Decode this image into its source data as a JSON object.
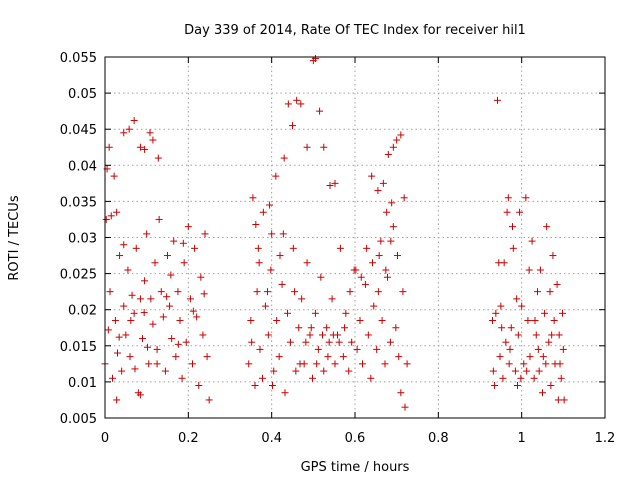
{
  "chart_data": {
    "type": "scatter",
    "title": "Day 339 of 2014, Rate Of TEC Index for receiver hil1",
    "xlabel": "GPS time / hours",
    "ylabel": "ROTI / TECUs",
    "xlim": [
      0,
      1.2
    ],
    "ylim": [
      0.005,
      0.055
    ],
    "xticks": [
      0,
      0.2,
      0.4,
      0.6,
      0.8,
      1.0,
      1.2
    ],
    "xtick_labels": [
      "0",
      "0.2",
      "0.4",
      "0.6",
      "0.8",
      "1",
      "1.2"
    ],
    "yticks": [
      0.005,
      0.01,
      0.015,
      0.02,
      0.025,
      0.03,
      0.035,
      0.04,
      0.045,
      0.05,
      0.055
    ],
    "ytick_labels": [
      "0.005",
      "0.01",
      "0.015",
      "0.02",
      "0.025",
      "0.03",
      "0.035",
      "0.04",
      "0.045",
      "0.05",
      "0.055"
    ],
    "grid": true,
    "marker": "+",
    "color": "#cc0000",
    "series": [
      {
        "name": "hil1",
        "points": [
          [
            0.005,
            0.0395
          ],
          [
            0.01,
            0.0425
          ],
          [
            0.022,
            0.0385
          ],
          [
            0.045,
            0.0445
          ],
          [
            0.058,
            0.045
          ],
          [
            0.07,
            0.0462
          ],
          [
            0.085,
            0.0425
          ],
          [
            0.095,
            0.0422
          ],
          [
            0.108,
            0.0445
          ],
          [
            0.115,
            0.0435
          ],
          [
            0.128,
            0.041
          ],
          [
            0.003,
            0.0325
          ],
          [
            0.015,
            0.033
          ],
          [
            0.028,
            0.0335
          ],
          [
            0.0,
            0.0125
          ],
          [
            0.008,
            0.0172
          ],
          [
            0.012,
            0.0225
          ],
          [
            0.018,
            0.0105
          ],
          [
            0.025,
            0.0185
          ],
          [
            0.03,
            0.014
          ],
          [
            0.035,
            0.0275
          ],
          [
            0.04,
            0.0115
          ],
          [
            0.045,
            0.0205
          ],
          [
            0.05,
            0.0165
          ],
          [
            0.055,
            0.0255
          ],
          [
            0.06,
            0.0135
          ],
          [
            0.065,
            0.022
          ],
          [
            0.07,
            0.0195
          ],
          [
            0.075,
            0.0285
          ],
          [
            0.08,
            0.0085
          ],
          [
            0.085,
            0.0215
          ],
          [
            0.09,
            0.016
          ],
          [
            0.095,
            0.024
          ],
          [
            0.1,
            0.0305
          ],
          [
            0.105,
            0.0125
          ],
          [
            0.11,
            0.0215
          ],
          [
            0.115,
            0.018
          ],
          [
            0.12,
            0.0265
          ],
          [
            0.125,
            0.0145
          ],
          [
            0.13,
            0.0325
          ],
          [
            0.135,
            0.0225
          ],
          [
            0.14,
            0.019
          ],
          [
            0.145,
            0.0115
          ],
          [
            0.15,
            0.0275
          ],
          [
            0.155,
            0.0205
          ],
          [
            0.16,
            0.016
          ],
          [
            0.165,
            0.0295
          ],
          [
            0.17,
            0.0135
          ],
          [
            0.175,
            0.0225
          ],
          [
            0.18,
            0.0185
          ],
          [
            0.185,
            0.0105
          ],
          [
            0.19,
            0.0265
          ],
          [
            0.195,
            0.0155
          ],
          [
            0.2,
            0.0315
          ],
          [
            0.205,
            0.0215
          ],
          [
            0.21,
            0.0125
          ],
          [
            0.215,
            0.0285
          ],
          [
            0.22,
            0.019
          ],
          [
            0.225,
            0.0095
          ],
          [
            0.23,
            0.0245
          ],
          [
            0.235,
            0.0165
          ],
          [
            0.24,
            0.0305
          ],
          [
            0.245,
            0.0135
          ],
          [
            0.25,
            0.0075
          ],
          [
            0.028,
            0.0075
          ],
          [
            0.085,
            0.0082
          ],
          [
            0.125,
            0.0125
          ],
          [
            0.045,
            0.029
          ],
          [
            0.062,
            0.0185
          ],
          [
            0.094,
            0.0196
          ],
          [
            0.148,
            0.0218
          ],
          [
            0.176,
            0.0152
          ],
          [
            0.212,
            0.0198
          ],
          [
            0.238,
            0.0222
          ],
          [
            0.102,
            0.0148
          ],
          [
            0.072,
            0.0118
          ],
          [
            0.158,
            0.0248
          ],
          [
            0.188,
            0.0292
          ],
          [
            0.034,
            0.0162
          ],
          [
            0.355,
            0.0355
          ],
          [
            0.362,
            0.0318
          ],
          [
            0.37,
            0.0265
          ],
          [
            0.38,
            0.0335
          ],
          [
            0.39,
            0.0225
          ],
          [
            0.4,
            0.0305
          ],
          [
            0.41,
            0.0385
          ],
          [
            0.42,
            0.0275
          ],
          [
            0.43,
            0.041
          ],
          [
            0.44,
            0.0485
          ],
          [
            0.45,
            0.0455
          ],
          [
            0.46,
            0.049
          ],
          [
            0.47,
            0.0485
          ],
          [
            0.485,
            0.0425
          ],
          [
            0.5,
            0.0545
          ],
          [
            0.505,
            0.0548
          ],
          [
            0.515,
            0.0475
          ],
          [
            0.525,
            0.0425
          ],
          [
            0.54,
            0.0372
          ],
          [
            0.552,
            0.0375
          ],
          [
            0.345,
            0.0125
          ],
          [
            0.35,
            0.0185
          ],
          [
            0.36,
            0.0095
          ],
          [
            0.365,
            0.0225
          ],
          [
            0.372,
            0.0145
          ],
          [
            0.378,
            0.0105
          ],
          [
            0.385,
            0.0205
          ],
          [
            0.392,
            0.0165
          ],
          [
            0.398,
            0.0255
          ],
          [
            0.405,
            0.0115
          ],
          [
            0.412,
            0.0185
          ],
          [
            0.418,
            0.0135
          ],
          [
            0.425,
            0.0235
          ],
          [
            0.432,
            0.0085
          ],
          [
            0.438,
            0.0195
          ],
          [
            0.445,
            0.0155
          ],
          [
            0.452,
            0.0285
          ],
          [
            0.458,
            0.0115
          ],
          [
            0.465,
            0.0175
          ],
          [
            0.472,
            0.0215
          ],
          [
            0.478,
            0.0125
          ],
          [
            0.485,
            0.0265
          ],
          [
            0.492,
            0.0165
          ],
          [
            0.498,
            0.0105
          ],
          [
            0.505,
            0.0195
          ],
          [
            0.512,
            0.0145
          ],
          [
            0.518,
            0.0245
          ],
          [
            0.525,
            0.0115
          ],
          [
            0.532,
            0.0175
          ],
          [
            0.538,
            0.0155
          ],
          [
            0.545,
            0.0215
          ],
          [
            0.552,
            0.0125
          ],
          [
            0.558,
            0.0165
          ],
          [
            0.565,
            0.0285
          ],
          [
            0.572,
            0.0135
          ],
          [
            0.578,
            0.0195
          ],
          [
            0.585,
            0.0115
          ],
          [
            0.592,
            0.0155
          ],
          [
            0.598,
            0.0255
          ],
          [
            0.605,
            0.0145
          ],
          [
            0.612,
            0.0185
          ],
          [
            0.618,
            0.0125
          ],
          [
            0.625,
            0.0235
          ],
          [
            0.632,
            0.0165
          ],
          [
            0.638,
            0.0105
          ],
          [
            0.645,
            0.0205
          ],
          [
            0.652,
            0.0145
          ],
          [
            0.658,
            0.0275
          ],
          [
            0.665,
            0.0185
          ],
          [
            0.672,
            0.0125
          ],
          [
            0.678,
            0.0245
          ],
          [
            0.685,
            0.0155
          ],
          [
            0.692,
            0.0315
          ],
          [
            0.698,
            0.0175
          ],
          [
            0.705,
            0.0135
          ],
          [
            0.71,
            0.0085
          ],
          [
            0.715,
            0.0225
          ],
          [
            0.72,
            0.0065
          ],
          [
            0.725,
            0.0125
          ],
          [
            0.718,
            0.0355
          ],
          [
            0.64,
            0.0385
          ],
          [
            0.655,
            0.0365
          ],
          [
            0.668,
            0.0375
          ],
          [
            0.68,
            0.0415
          ],
          [
            0.692,
            0.0425
          ],
          [
            0.7,
            0.0435
          ],
          [
            0.71,
            0.0442
          ],
          [
            0.688,
            0.0348
          ],
          [
            0.676,
            0.0335
          ],
          [
            0.352,
            0.0155
          ],
          [
            0.368,
            0.0285
          ],
          [
            0.395,
            0.0345
          ],
          [
            0.402,
            0.0095
          ],
          [
            0.428,
            0.0305
          ],
          [
            0.455,
            0.0225
          ],
          [
            0.468,
            0.0125
          ],
          [
            0.482,
            0.0155
          ],
          [
            0.495,
            0.0175
          ],
          [
            0.508,
            0.0125
          ],
          [
            0.522,
            0.0165
          ],
          [
            0.535,
            0.0135
          ],
          [
            0.548,
            0.0165
          ],
          [
            0.562,
            0.0155
          ],
          [
            0.575,
            0.0175
          ],
          [
            0.588,
            0.0225
          ],
          [
            0.602,
            0.0255
          ],
          [
            0.615,
            0.0245
          ],
          [
            0.628,
            0.0285
          ],
          [
            0.642,
            0.0265
          ],
          [
            0.656,
            0.0225
          ],
          [
            0.662,
            0.0295
          ],
          [
            0.674,
            0.0255
          ],
          [
            0.686,
            0.0295
          ],
          [
            0.702,
            0.0275
          ],
          [
            0.93,
            0.0185
          ],
          [
            0.932,
            0.0115
          ],
          [
            0.935,
            0.0095
          ],
          [
            0.938,
            0.0195
          ],
          [
            0.942,
            0.049
          ],
          [
            0.945,
            0.0265
          ],
          [
            0.948,
            0.0135
          ],
          [
            0.95,
            0.0205
          ],
          [
            0.955,
            0.0105
          ],
          [
            0.958,
            0.0265
          ],
          [
            0.962,
            0.0155
          ],
          [
            0.965,
            0.0335
          ],
          [
            0.968,
            0.0355
          ],
          [
            0.97,
            0.0125
          ],
          [
            0.975,
            0.0175
          ],
          [
            0.978,
            0.0315
          ],
          [
            0.98,
            0.0285
          ],
          [
            0.985,
            0.0115
          ],
          [
            0.988,
            0.0215
          ],
          [
            0.99,
            0.0095
          ],
          [
            0.995,
            0.0335
          ],
          [
            1.0,
            0.0205
          ],
          [
            1.005,
            0.0125
          ],
          [
            1.01,
            0.0355
          ],
          [
            1.015,
            0.0185
          ],
          [
            1.018,
            0.0255
          ],
          [
            1.02,
            0.0135
          ],
          [
            1.025,
            0.0295
          ],
          [
            1.03,
            0.0105
          ],
          [
            1.035,
            0.0165
          ],
          [
            1.038,
            0.0225
          ],
          [
            1.04,
            0.0145
          ],
          [
            1.045,
            0.0255
          ],
          [
            1.05,
            0.0085
          ],
          [
            1.055,
            0.0195
          ],
          [
            1.058,
            0.0125
          ],
          [
            1.06,
            0.0315
          ],
          [
            1.065,
            0.0155
          ],
          [
            1.068,
            0.0225
          ],
          [
            1.07,
            0.0095
          ],
          [
            1.075,
            0.0275
          ],
          [
            1.078,
            0.0185
          ],
          [
            1.08,
            0.0125
          ],
          [
            1.085,
            0.0235
          ],
          [
            1.088,
            0.0075
          ],
          [
            1.09,
            0.0165
          ],
          [
            1.095,
            0.0105
          ],
          [
            1.098,
            0.0195
          ],
          [
            1.1,
            0.0145
          ],
          [
            1.102,
            0.0075
          ],
          [
            0.952,
            0.0175
          ],
          [
            0.972,
            0.0145
          ],
          [
            0.992,
            0.0165
          ],
          [
            1.012,
            0.0115
          ],
          [
            1.032,
            0.0185
          ],
          [
            1.052,
            0.0135
          ],
          [
            1.072,
            0.0165
          ],
          [
            1.092,
            0.0125
          ],
          [
            0.998,
            0.0105
          ],
          [
            1.042,
            0.0115
          ]
        ]
      }
    ]
  }
}
